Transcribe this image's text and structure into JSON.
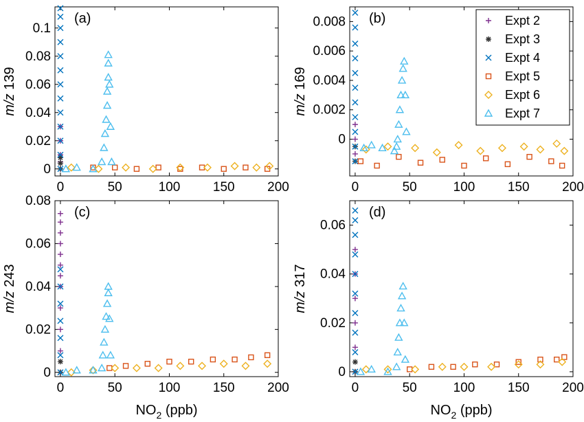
{
  "series_styles": [
    {
      "name": "Expt 2",
      "marker": "plus",
      "color": "#7e2f8e"
    },
    {
      "name": "Expt 3",
      "marker": "star",
      "color": "#333333"
    },
    {
      "name": "Expt 4",
      "marker": "cross",
      "color": "#0072bd"
    },
    {
      "name": "Expt 5",
      "marker": "square",
      "color": "#d95319"
    },
    {
      "name": "Expt 6",
      "marker": "diamond",
      "color": "#edb120"
    },
    {
      "name": "Expt 7",
      "marker": "triangle",
      "color": "#4dbeee"
    }
  ],
  "legend": {
    "location": "top-right",
    "panel": "b"
  },
  "chart_data": [
    {
      "panel": "(a)",
      "type": "scatter",
      "xlabel": "",
      "ylabel_italic": "m/z",
      "ylabel_rest": " 139",
      "xlim": [
        -5,
        200
      ],
      "ylim": [
        -0.005,
        0.115
      ],
      "xticks": [
        0,
        50,
        100,
        150,
        200
      ],
      "xtick_labels": [
        "0",
        "50",
        "100",
        "150",
        "200"
      ],
      "yticks": [
        0,
        0.02,
        0.04,
        0.06,
        0.08,
        0.1
      ],
      "ytick_labels": [
        "0",
        "0.02",
        "0.04",
        "0.06",
        "0.08",
        "0.1"
      ],
      "series": [
        {
          "name": "Expt 2",
          "points": [
            [
              0,
              0.0
            ],
            [
              0,
              0.005
            ],
            [
              0,
              0.01
            ],
            [
              0,
              0.02
            ],
            [
              0,
              0.03
            ]
          ]
        },
        {
          "name": "Expt 3",
          "points": [
            [
              0,
              0.0
            ],
            [
              0,
              0.004
            ],
            [
              0,
              0.008
            ]
          ]
        },
        {
          "name": "Expt 4",
          "points": [
            [
              0,
              0.0
            ],
            [
              0,
              0.01
            ],
            [
              0,
              0.02
            ],
            [
              0,
              0.03
            ],
            [
              0,
              0.04
            ],
            [
              0,
              0.05
            ],
            [
              0,
              0.06
            ],
            [
              0,
              0.07
            ],
            [
              0,
              0.08
            ],
            [
              0,
              0.09
            ],
            [
              0,
              0.1
            ],
            [
              0,
              0.108
            ],
            [
              0,
              0.114
            ]
          ]
        },
        {
          "name": "Expt 5",
          "points": [
            [
              30,
              0.001
            ],
            [
              50,
              0.001
            ],
            [
              70,
              0.0
            ],
            [
              90,
              0.001
            ],
            [
              110,
              0.0
            ],
            [
              130,
              0.001
            ],
            [
              150,
              0.0
            ],
            [
              170,
              0.001
            ],
            [
              190,
              0.0
            ]
          ]
        },
        {
          "name": "Expt 6",
          "points": [
            [
              10,
              0.001
            ],
            [
              35,
              0.0
            ],
            [
              60,
              0.001
            ],
            [
              85,
              0.0
            ],
            [
              110,
              0.001
            ],
            [
              135,
              0.001
            ],
            [
              160,
              0.002
            ],
            [
              180,
              0.001
            ],
            [
              192,
              0.002
            ]
          ]
        },
        {
          "name": "Expt 7",
          "points": [
            [
              5,
              0.0
            ],
            [
              15,
              0.001
            ],
            [
              30,
              0.0
            ],
            [
              38,
              0.005
            ],
            [
              40,
              0.015
            ],
            [
              41,
              0.025
            ],
            [
              42,
              0.035
            ],
            [
              43,
              0.045
            ],
            [
              43,
              0.055
            ],
            [
              44,
              0.065
            ],
            [
              44,
              0.075
            ],
            [
              44,
              0.081
            ],
            [
              45,
              0.06
            ],
            [
              46,
              0.03
            ],
            [
              47,
              0.005
            ]
          ]
        }
      ]
    },
    {
      "panel": "(b)",
      "type": "scatter",
      "xlabel": "",
      "ylabel_italic": "m/z",
      "ylabel_rest": " 169",
      "xlim": [
        -5,
        200
      ],
      "ylim": [
        -0.0025,
        0.009
      ],
      "xticks": [
        0,
        50,
        100,
        150,
        200
      ],
      "xtick_labels": [
        "0",
        "50",
        "100",
        "150",
        "200"
      ],
      "yticks": [
        0,
        0.002,
        0.004,
        0.006,
        0.008
      ],
      "ytick_labels": [
        "0",
        "0.002",
        "0.004",
        "0.006",
        "0.008"
      ],
      "series": [
        {
          "name": "Expt 2",
          "points": [
            [
              0,
              -0.001
            ],
            [
              0,
              0.0
            ],
            [
              0,
              0.001
            ]
          ]
        },
        {
          "name": "Expt 3",
          "points": [
            [
              0,
              -0.0015
            ],
            [
              0,
              -0.0005
            ]
          ]
        },
        {
          "name": "Expt 4",
          "points": [
            [
              0,
              -0.0015
            ],
            [
              0,
              -0.0005
            ],
            [
              0,
              0.0005
            ],
            [
              0,
              0.0015
            ],
            [
              0,
              0.0025
            ],
            [
              0,
              0.0035
            ],
            [
              0,
              0.0045
            ],
            [
              0,
              0.0055
            ],
            [
              0,
              0.0065
            ],
            [
              0,
              0.0076
            ],
            [
              0,
              0.0086
            ]
          ]
        },
        {
          "name": "Expt 5",
          "points": [
            [
              5,
              -0.0015
            ],
            [
              20,
              -0.0018
            ],
            [
              40,
              -0.0012
            ],
            [
              60,
              -0.0016
            ],
            [
              80,
              -0.0014
            ],
            [
              100,
              -0.0018
            ],
            [
              120,
              -0.0013
            ],
            [
              140,
              -0.0017
            ],
            [
              160,
              -0.0012
            ],
            [
              180,
              -0.0015
            ],
            [
              190,
              -0.0018
            ]
          ]
        },
        {
          "name": "Expt 6",
          "points": [
            [
              10,
              -0.0007
            ],
            [
              30,
              -0.0005
            ],
            [
              55,
              -0.0006
            ],
            [
              75,
              -0.0009
            ],
            [
              95,
              -0.0004
            ],
            [
              115,
              -0.0008
            ],
            [
              135,
              -0.0006
            ],
            [
              155,
              -0.0005
            ],
            [
              170,
              -0.0007
            ],
            [
              185,
              -0.0003
            ],
            [
              192,
              -0.0008
            ]
          ]
        },
        {
          "name": "Expt 7",
          "points": [
            [
              8,
              -0.0006
            ],
            [
              15,
              -0.0004
            ],
            [
              25,
              -0.0006
            ],
            [
              36,
              -0.0008
            ],
            [
              38,
              -0.0005
            ],
            [
              39,
              0.0
            ],
            [
              40,
              0.001
            ],
            [
              41,
              0.002
            ],
            [
              42,
              0.003
            ],
            [
              43,
              0.004
            ],
            [
              44,
              0.0048
            ],
            [
              45,
              0.0053
            ],
            [
              46,
              0.003
            ],
            [
              47,
              0.0005
            ]
          ]
        }
      ]
    },
    {
      "panel": "(c)",
      "type": "scatter",
      "xlabel_main": "NO",
      "xlabel_sub": "2",
      "xlabel_rest": " (ppb)",
      "ylabel_italic": "m/z",
      "ylabel_rest": " 243",
      "xlim": [
        -5,
        200
      ],
      "ylim": [
        -0.002,
        0.08
      ],
      "xticks": [
        0,
        50,
        100,
        150,
        200
      ],
      "xtick_labels": [
        "0",
        "50",
        "100",
        "150",
        "200"
      ],
      "yticks": [
        0,
        0.02,
        0.04,
        0.06,
        0.08
      ],
      "ytick_labels": [
        "0",
        "0.02",
        "0.04",
        "0.06",
        "0.08"
      ],
      "series": [
        {
          "name": "Expt 2",
          "points": [
            [
              0,
              0.0
            ],
            [
              0,
              0.01
            ],
            [
              0,
              0.02
            ],
            [
              0,
              0.03
            ],
            [
              0,
              0.04
            ],
            [
              0,
              0.045
            ],
            [
              0,
              0.05
            ],
            [
              0,
              0.055
            ],
            [
              0,
              0.06
            ],
            [
              0,
              0.065
            ],
            [
              0,
              0.07
            ],
            [
              0,
              0.074
            ]
          ]
        },
        {
          "name": "Expt 3",
          "points": [
            [
              0,
              0.0
            ],
            [
              0,
              0.005
            ]
          ]
        },
        {
          "name": "Expt 4",
          "points": [
            [
              0,
              0.0
            ],
            [
              0,
              0.008
            ],
            [
              0,
              0.016
            ],
            [
              0,
              0.024
            ],
            [
              0,
              0.032
            ],
            [
              0,
              0.04
            ],
            [
              0,
              0.048
            ]
          ]
        },
        {
          "name": "Expt 5",
          "points": [
            [
              45,
              0.002
            ],
            [
              60,
              0.003
            ],
            [
              80,
              0.004
            ],
            [
              100,
              0.005
            ],
            [
              120,
              0.005
            ],
            [
              140,
              0.006
            ],
            [
              160,
              0.006
            ],
            [
              175,
              0.007
            ],
            [
              190,
              0.008
            ]
          ]
        },
        {
          "name": "Expt 6",
          "points": [
            [
              10,
              0.0
            ],
            [
              30,
              0.001
            ],
            [
              50,
              0.002
            ],
            [
              70,
              0.002
            ],
            [
              90,
              0.002
            ],
            [
              110,
              0.003
            ],
            [
              130,
              0.003
            ],
            [
              150,
              0.004
            ],
            [
              170,
              0.003
            ],
            [
              190,
              0.004
            ]
          ]
        },
        {
          "name": "Expt 7",
          "points": [
            [
              5,
              0.0
            ],
            [
              15,
              0.001
            ],
            [
              30,
              0.001
            ],
            [
              38,
              0.002
            ],
            [
              39,
              0.008
            ],
            [
              40,
              0.014
            ],
            [
              41,
              0.02
            ],
            [
              42,
              0.026
            ],
            [
              43,
              0.032
            ],
            [
              44,
              0.037
            ],
            [
              44,
              0.04
            ],
            [
              45,
              0.025
            ],
            [
              46,
              0.008
            ]
          ]
        }
      ]
    },
    {
      "panel": "(d)",
      "type": "scatter",
      "xlabel_main": "NO",
      "xlabel_sub": "2",
      "xlabel_rest": " (ppb)",
      "ylabel_italic": "m/z",
      "ylabel_rest": " 317",
      "xlim": [
        -5,
        200
      ],
      "ylim": [
        -0.002,
        0.07
      ],
      "xticks": [
        0,
        50,
        100,
        150,
        200
      ],
      "xtick_labels": [
        "0",
        "50",
        "100",
        "150",
        "200"
      ],
      "yticks": [
        0,
        0.02,
        0.04,
        0.06
      ],
      "ytick_labels": [
        "0",
        "0.02",
        "0.04",
        "0.06"
      ],
      "series": [
        {
          "name": "Expt 2",
          "points": [
            [
              0,
              0.0
            ],
            [
              0,
              0.01
            ],
            [
              0,
              0.02
            ],
            [
              0,
              0.03
            ],
            [
              0,
              0.04
            ],
            [
              0,
              0.05
            ]
          ]
        },
        {
          "name": "Expt 3",
          "points": [
            [
              0,
              0.0
            ],
            [
              0,
              0.004
            ]
          ]
        },
        {
          "name": "Expt 4",
          "points": [
            [
              0,
              0.0
            ],
            [
              0,
              0.008
            ],
            [
              0,
              0.016
            ],
            [
              0,
              0.024
            ],
            [
              0,
              0.032
            ],
            [
              0,
              0.04
            ],
            [
              0,
              0.048
            ],
            [
              0,
              0.056
            ],
            [
              0,
              0.062
            ],
            [
              0,
              0.066
            ]
          ]
        },
        {
          "name": "Expt 5",
          "points": [
            [
              50,
              0.001
            ],
            [
              70,
              0.002
            ],
            [
              90,
              0.002
            ],
            [
              110,
              0.003
            ],
            [
              130,
              0.003
            ],
            [
              150,
              0.004
            ],
            [
              170,
              0.005
            ],
            [
              185,
              0.005
            ],
            [
              192,
              0.006
            ]
          ]
        },
        {
          "name": "Expt 6",
          "points": [
            [
              10,
              0.001
            ],
            [
              30,
              0.001
            ],
            [
              55,
              0.001
            ],
            [
              80,
              0.002
            ],
            [
              100,
              0.002
            ],
            [
              125,
              0.002
            ],
            [
              150,
              0.003
            ],
            [
              170,
              0.003
            ],
            [
              190,
              0.004
            ]
          ]
        },
        {
          "name": "Expt 7",
          "points": [
            [
              5,
              0.0
            ],
            [
              15,
              0.001
            ],
            [
              30,
              0.0
            ],
            [
              38,
              0.002
            ],
            [
              39,
              0.008
            ],
            [
              40,
              0.014
            ],
            [
              41,
              0.02
            ],
            [
              42,
              0.026
            ],
            [
              43,
              0.031
            ],
            [
              44,
              0.035
            ],
            [
              45,
              0.02
            ],
            [
              46,
              0.005
            ]
          ]
        }
      ]
    }
  ]
}
